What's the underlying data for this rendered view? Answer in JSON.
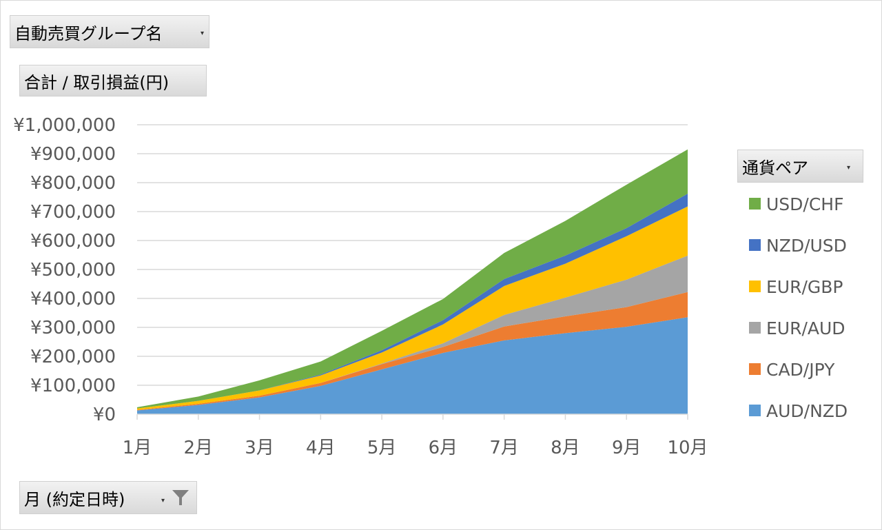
{
  "filters": {
    "group_label": "自動売買グループ名",
    "value_label": "合計 / 取引損益(円)",
    "legend_label": "通貨ペア",
    "axis_label": "月 (約定日時)"
  },
  "chart_data": {
    "type": "area",
    "stacked": true,
    "categories": [
      "1月",
      "2月",
      "3月",
      "4月",
      "5月",
      "6月",
      "7月",
      "8月",
      "9月",
      "10月"
    ],
    "ylim": [
      0,
      1000000
    ],
    "ytick_values": [
      0,
      100000,
      200000,
      300000,
      400000,
      500000,
      600000,
      700000,
      800000,
      900000,
      1000000
    ],
    "ytick_labels": [
      "¥0",
      "¥100,000",
      "¥200,000",
      "¥300,000",
      "¥400,000",
      "¥500,000",
      "¥600,000",
      "¥700,000",
      "¥800,000",
      "¥900,000",
      "¥1,000,000"
    ],
    "grid": true,
    "legend_position": "right",
    "series": [
      {
        "name": "AUD/NZD",
        "color": "#5b9bd5",
        "values": [
          13000,
          32000,
          58000,
          98000,
          155000,
          212000,
          255000,
          280000,
          302000,
          335000
        ]
      },
      {
        "name": "CAD/JPY",
        "color": "#ed7d31",
        "values": [
          2000,
          4000,
          6000,
          10000,
          18000,
          20000,
          48000,
          58000,
          68000,
          87000
        ]
      },
      {
        "name": "EUR/AUD",
        "color": "#a5a5a5",
        "values": [
          0,
          0,
          0,
          0,
          2000,
          13000,
          40000,
          65000,
          95000,
          126000
        ]
      },
      {
        "name": "EUR/GBP",
        "color": "#ffc000",
        "values": [
          5000,
          10000,
          18000,
          26000,
          38000,
          65000,
          100000,
          117000,
          150000,
          170000
        ]
      },
      {
        "name": "NZD/USD",
        "color": "#4472c4",
        "values": [
          0,
          0,
          0,
          3000,
          8000,
          15000,
          24000,
          28000,
          28000,
          44000
        ]
      },
      {
        "name": "USD/CHF",
        "color": "#70ad47",
        "values": [
          4000,
          15000,
          35000,
          45000,
          67000,
          73000,
          90000,
          120000,
          150000,
          153000
        ]
      }
    ]
  }
}
